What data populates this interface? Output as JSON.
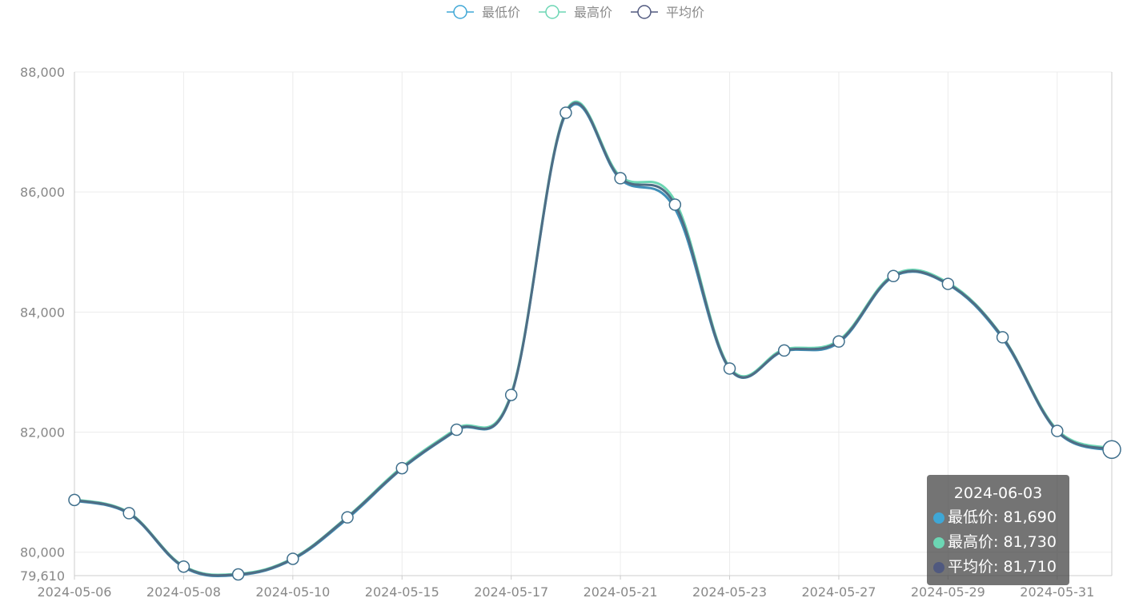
{
  "chart_data": {
    "type": "line",
    "smooth": true,
    "x": [
      "2024-05-06",
      "2024-05-07",
      "2024-05-08",
      "2024-05-09",
      "2024-05-10",
      "2024-05-13",
      "2024-05-15",
      "2024-05-16",
      "2024-05-17",
      "2024-05-20",
      "2024-05-21",
      "2024-05-22",
      "2024-05-23",
      "2024-05-24",
      "2024-05-27",
      "2024-05-28",
      "2024-05-29",
      "2024-05-30",
      "2024-05-31",
      "2024-06-03"
    ],
    "x_tick_labels": [
      "2024-05-06",
      "2024-05-08",
      "2024-05-10",
      "2024-05-15",
      "2024-05-17",
      "2024-05-21",
      "2024-05-23",
      "2024-05-27",
      "2024-05-29",
      "2024-05-31"
    ],
    "y_tick_labels": [
      "88,000",
      "86,000",
      "84,000",
      "82,000",
      "80,000",
      "79,610"
    ],
    "ylim": [
      79610,
      88000
    ],
    "grid": true,
    "legend_position": "top-center",
    "series": [
      {
        "name": "最低价",
        "color": "#3fa7d6",
        "values": [
          80860,
          80640,
          79750,
          79620,
          79880,
          80560,
          81390,
          82030,
          82610,
          87300,
          86210,
          85720,
          83050,
          83350,
          83490,
          84590,
          84460,
          83560,
          82010,
          81690
        ]
      },
      {
        "name": "最高价",
        "color": "#6cd6b4",
        "values": [
          80880,
          80660,
          79770,
          79640,
          79900,
          80590,
          81420,
          82060,
          82640,
          87340,
          86260,
          85850,
          83080,
          83380,
          83530,
          84620,
          84490,
          83590,
          82040,
          81730
        ]
      },
      {
        "name": "平均价",
        "color": "#50597f",
        "values": [
          80870,
          80650,
          79760,
          79630,
          79890,
          80580,
          81400,
          82040,
          82620,
          87320,
          86230,
          85790,
          83060,
          83360,
          83510,
          84600,
          84470,
          83580,
          82020,
          81710
        ]
      }
    ],
    "tooltip": {
      "title": "2024-06-03",
      "rows": [
        {
          "label": "最低价: 81,690",
          "color": "#3fa7d6"
        },
        {
          "label": "最高价: 81,730",
          "color": "#6cd6b4"
        },
        {
          "label": "平均价: 81,710",
          "color": "#50597f"
        }
      ]
    }
  }
}
